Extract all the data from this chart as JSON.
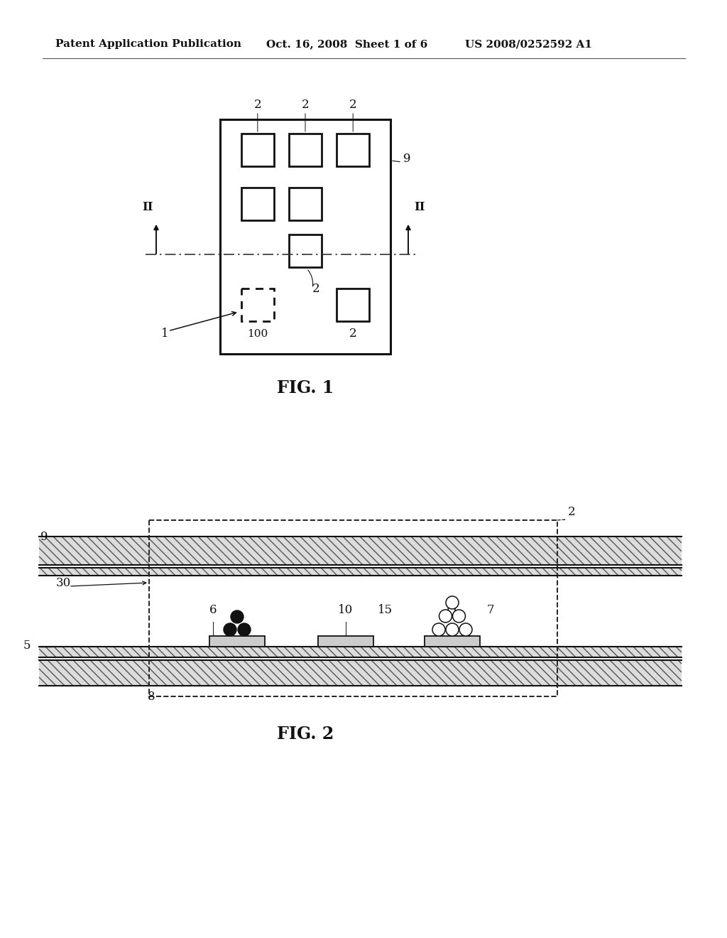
{
  "bg_color": "#ffffff",
  "header_left": "Patent Application Publication",
  "header_mid": "Oct. 16, 2008  Sheet 1 of 6",
  "header_right": "US 2008/0252592 A1",
  "fig1_title": "FIG. 1",
  "fig2_title": "FIG. 2",
  "line_color": "#111111",
  "hatch_color": "#666666",
  "hatch_bg": "#d8d8d8"
}
